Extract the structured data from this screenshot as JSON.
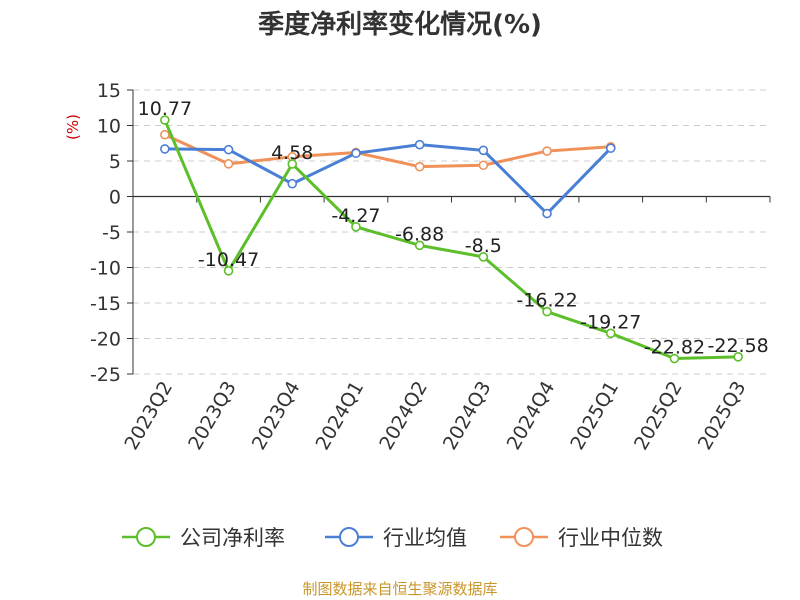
{
  "chart_data": {
    "type": "line",
    "title": "季度净利率变化情况(%)",
    "ylabel": "(%)",
    "xlabel": "",
    "ylim": [
      -25,
      15
    ],
    "yticks": [
      15,
      10,
      5,
      0,
      -5,
      -10,
      -15,
      -20,
      -25
    ],
    "categories": [
      "2023Q2",
      "2023Q3",
      "2023Q4",
      "2024Q1",
      "2024Q2",
      "2024Q3",
      "2024Q4",
      "2025Q1",
      "2025Q2",
      "2025Q3"
    ],
    "grid": true,
    "legend_position": "bottom",
    "series": [
      {
        "name": "公司净利率",
        "color": "#5cbf2a",
        "values": [
          10.77,
          -10.47,
          4.58,
          -4.27,
          -6.88,
          -8.5,
          -16.22,
          -19.27,
          -22.82,
          -22.58
        ],
        "labels": [
          "10.77",
          "-10.47",
          "4.58",
          "-4.27",
          "-6.88",
          "-8.5",
          "-16.22",
          "-19.27",
          "-22.82",
          "-22.58"
        ]
      },
      {
        "name": "行业均值",
        "color": "#4a7fd6",
        "values": [
          6.7,
          6.6,
          1.8,
          6.1,
          7.3,
          6.5,
          -2.4,
          6.8,
          null,
          null
        ]
      },
      {
        "name": "行业中位数",
        "color": "#f0915a",
        "values": [
          8.7,
          4.6,
          5.6,
          6.2,
          4.2,
          4.4,
          6.4,
          7.0,
          null,
          null
        ]
      }
    ],
    "source": "制图数据来自恒生聚源数据库"
  }
}
